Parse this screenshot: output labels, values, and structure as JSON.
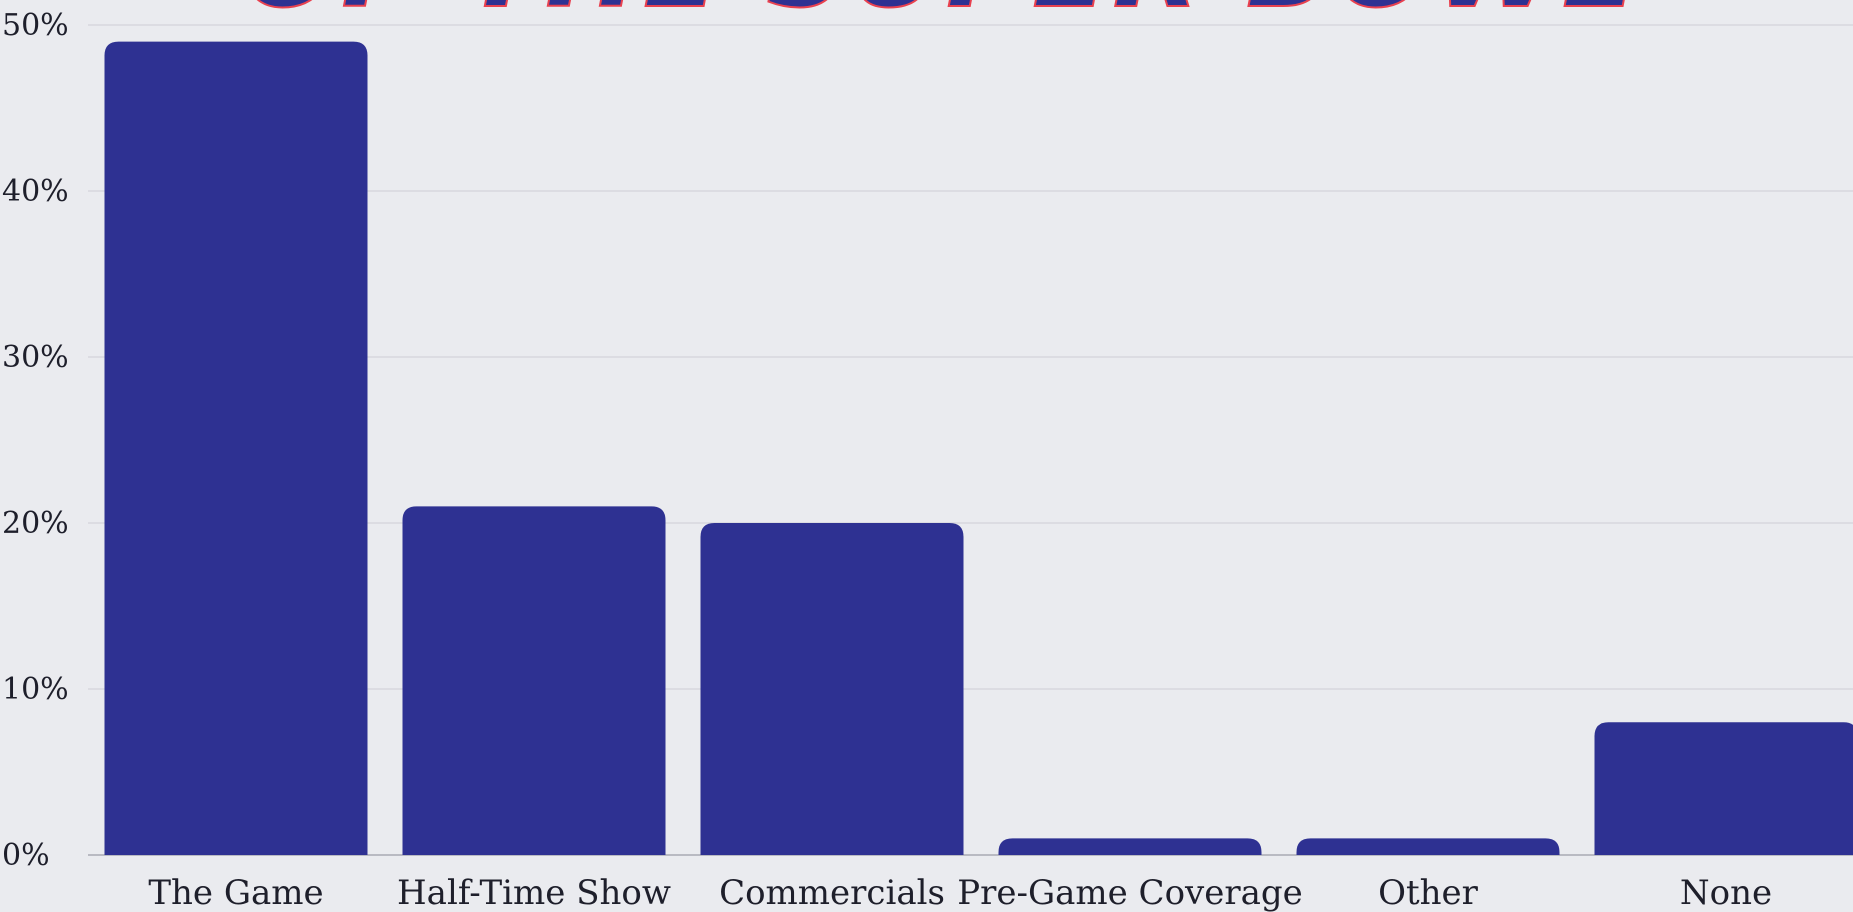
{
  "chart_data": {
    "type": "bar",
    "title": "OF THE SUPER BOWL",
    "categories": [
      "The Game",
      "Half-Time Show",
      "Commercials",
      "Pre-Game Coverage",
      "Other",
      "None"
    ],
    "values": [
      49,
      21,
      20,
      1,
      1,
      8
    ],
    "yticks": [
      "0%",
      "10%",
      "20%",
      "30%",
      "40%",
      "50%"
    ],
    "ylim": [
      0,
      50
    ],
    "grid": true,
    "legend": "none",
    "bar_color": "#2e3192",
    "title_color": "#2e3192",
    "title_outline_color": "#e8414f"
  }
}
